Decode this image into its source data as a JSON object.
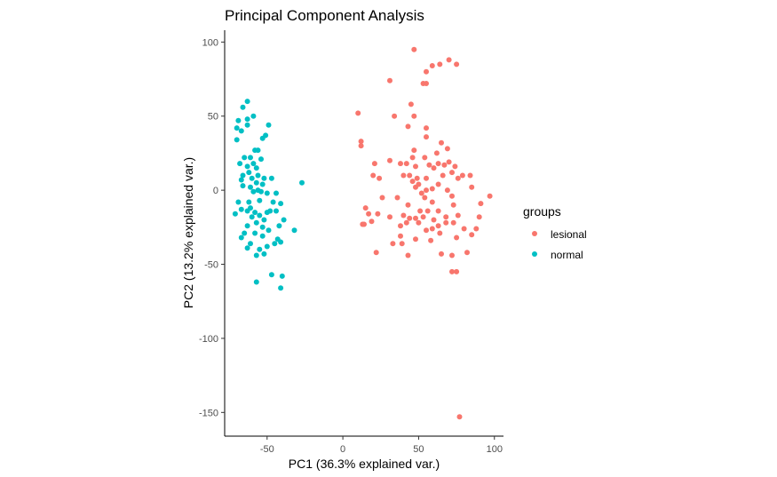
{
  "chart_data": {
    "type": "scatter",
    "title": "Principal Component Analysis",
    "xlabel": "PC1 (36.3% explained var.)",
    "ylabel": "PC2 (13.2% explained var.)",
    "xlim": [
      -78,
      106
    ],
    "ylim": [
      -166,
      108
    ],
    "xticks": [
      -50,
      0,
      50,
      100
    ],
    "yticks": [
      -150,
      -100,
      -50,
      0,
      50,
      100
    ],
    "grid": false,
    "legend": {
      "title": "groups",
      "position": "right"
    },
    "series": [
      {
        "name": "lesional",
        "color": "#F8766D",
        "points": [
          [
            47,
            95
          ],
          [
            70,
            88
          ],
          [
            64,
            85
          ],
          [
            75,
            85
          ],
          [
            59,
            84
          ],
          [
            55,
            80
          ],
          [
            53,
            72
          ],
          [
            55,
            72
          ],
          [
            31,
            74
          ],
          [
            45,
            58
          ],
          [
            10,
            52
          ],
          [
            34,
            50
          ],
          [
            47,
            50
          ],
          [
            43,
            43
          ],
          [
            55,
            42
          ],
          [
            55,
            36
          ],
          [
            12,
            33
          ],
          [
            12,
            30
          ],
          [
            65,
            32
          ],
          [
            69,
            28
          ],
          [
            47,
            27
          ],
          [
            31,
            20
          ],
          [
            62,
            25
          ],
          [
            46,
            22
          ],
          [
            54,
            22
          ],
          [
            21,
            18
          ],
          [
            38,
            18
          ],
          [
            42,
            18
          ],
          [
            48,
            16
          ],
          [
            57,
            17
          ],
          [
            60,
            15
          ],
          [
            63,
            18
          ],
          [
            67,
            17
          ],
          [
            70,
            19
          ],
          [
            74,
            16
          ],
          [
            79,
            10
          ],
          [
            72,
            12
          ],
          [
            20,
            10
          ],
          [
            24,
            8
          ],
          [
            40,
            10
          ],
          [
            44,
            10
          ],
          [
            49,
            8
          ],
          [
            55,
            8
          ],
          [
            66,
            10
          ],
          [
            76,
            8
          ],
          [
            84,
            10
          ],
          [
            46,
            6
          ],
          [
            50,
            4
          ],
          [
            63,
            4
          ],
          [
            69,
            0
          ],
          [
            85,
            2
          ],
          [
            97,
            -4
          ],
          [
            59,
            1
          ],
          [
            55,
            0
          ],
          [
            48,
            2
          ],
          [
            52,
            -2
          ],
          [
            72,
            -4
          ],
          [
            26,
            -5
          ],
          [
            36,
            -5
          ],
          [
            43,
            -10
          ],
          [
            54,
            -5
          ],
          [
            59,
            -8
          ],
          [
            73,
            -10
          ],
          [
            91,
            -9
          ],
          [
            51,
            -14
          ],
          [
            56,
            -14
          ],
          [
            63,
            -14
          ],
          [
            15,
            -12
          ],
          [
            17,
            -16
          ],
          [
            23,
            -16
          ],
          [
            31,
            -18
          ],
          [
            40,
            -17
          ],
          [
            44,
            -19
          ],
          [
            48,
            -19
          ],
          [
            53,
            -18
          ],
          [
            60,
            -20
          ],
          [
            68,
            -18
          ],
          [
            76,
            -17
          ],
          [
            90,
            -18
          ],
          [
            13,
            -23
          ],
          [
            14,
            -23
          ],
          [
            38,
            -24
          ],
          [
            42,
            -22
          ],
          [
            50,
            -22
          ],
          [
            63,
            -24
          ],
          [
            68,
            -22
          ],
          [
            73,
            -22
          ],
          [
            19,
            -21
          ],
          [
            55,
            -27
          ],
          [
            59,
            -26
          ],
          [
            64,
            -29
          ],
          [
            80,
            -26
          ],
          [
            85,
            -30
          ],
          [
            88,
            -26
          ],
          [
            38,
            -31
          ],
          [
            48,
            -33
          ],
          [
            75,
            -32
          ],
          [
            33,
            -36
          ],
          [
            39,
            -36
          ],
          [
            58,
            -34
          ],
          [
            72,
            -44
          ],
          [
            22,
            -42
          ],
          [
            43,
            -44
          ],
          [
            65,
            -43
          ],
          [
            82,
            -42
          ],
          [
            72,
            -55
          ],
          [
            75,
            -55
          ],
          [
            77,
            -153
          ]
        ]
      },
      {
        "name": "normal",
        "color": "#00BFC4",
        "points": [
          [
            -63,
            60
          ],
          [
            -66,
            56
          ],
          [
            -59,
            50
          ],
          [
            -63,
            48
          ],
          [
            -69,
            47
          ],
          [
            -70,
            42
          ],
          [
            -63,
            44
          ],
          [
            -49,
            44
          ],
          [
            -51,
            37
          ],
          [
            -67,
            40
          ],
          [
            -53,
            35
          ],
          [
            -70,
            34
          ],
          [
            -58,
            27
          ],
          [
            -56,
            27
          ],
          [
            -65,
            22
          ],
          [
            -61,
            22
          ],
          [
            -59,
            18
          ],
          [
            -54,
            21
          ],
          [
            -68,
            18
          ],
          [
            -63,
            16
          ],
          [
            -57,
            15
          ],
          [
            -62,
            12
          ],
          [
            -66,
            10
          ],
          [
            -60,
            8
          ],
          [
            -56,
            10
          ],
          [
            -52,
            8
          ],
          [
            -47,
            8
          ],
          [
            -67,
            7
          ],
          [
            -27,
            5
          ],
          [
            -57,
            5
          ],
          [
            -53,
            4
          ],
          [
            -61,
            2
          ],
          [
            -66,
            3
          ],
          [
            -56,
            0
          ],
          [
            -59,
            -1
          ],
          [
            -54,
            -1
          ],
          [
            -50,
            -2
          ],
          [
            -44,
            -2
          ],
          [
            -55,
            -7
          ],
          [
            -69,
            -8
          ],
          [
            -62,
            -8
          ],
          [
            -46,
            -8
          ],
          [
            -41,
            -9
          ],
          [
            -61,
            -12
          ],
          [
            -67,
            -13
          ],
          [
            -63,
            -14
          ],
          [
            -58,
            -15
          ],
          [
            -50,
            -15
          ],
          [
            -48,
            -14
          ],
          [
            -44,
            -14
          ],
          [
            -71,
            -16
          ],
          [
            -55,
            -17
          ],
          [
            -60,
            -18
          ],
          [
            -52,
            -20
          ],
          [
            -57,
            -22
          ],
          [
            -63,
            -24
          ],
          [
            -42,
            -24
          ],
          [
            -39,
            -20
          ],
          [
            -53,
            -25
          ],
          [
            -49,
            -27
          ],
          [
            -32,
            -27
          ],
          [
            -65,
            -29
          ],
          [
            -58,
            -29
          ],
          [
            -53,
            -31
          ],
          [
            -67,
            -32
          ],
          [
            -43,
            -33
          ],
          [
            -61,
            -36
          ],
          [
            -50,
            -38
          ],
          [
            -45,
            -36
          ],
          [
            -55,
            -40
          ],
          [
            -63,
            -39
          ],
          [
            -41,
            -35
          ],
          [
            -47,
            -57
          ],
          [
            -57,
            -62
          ],
          [
            -40,
            -58
          ],
          [
            -41,
            -66
          ],
          [
            -52,
            -43
          ],
          [
            -57,
            -44
          ]
        ]
      }
    ]
  }
}
